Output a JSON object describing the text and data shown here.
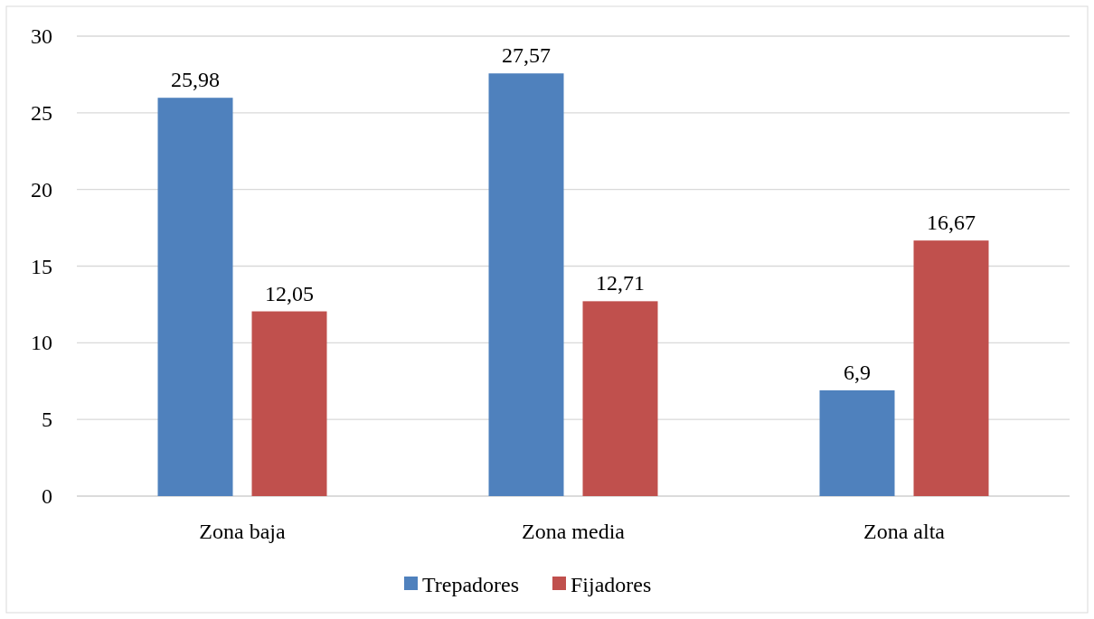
{
  "chart_data": {
    "type": "bar",
    "categories": [
      "Zona baja",
      "Zona media",
      "Zona alta"
    ],
    "series": [
      {
        "name": "Trepadores",
        "color": "#4f81bd",
        "values": [
          25.98,
          27.57,
          6.9
        ],
        "value_labels": [
          "25,98",
          "27,57",
          "6,9"
        ]
      },
      {
        "name": "Fijadores",
        "color": "#c0504d",
        "values": [
          12.05,
          12.71,
          16.67
        ],
        "value_labels": [
          "12,05",
          "12,71",
          "16,67"
        ]
      }
    ],
    "ylim": [
      0,
      30
    ],
    "yticks": [
      0,
      5,
      10,
      15,
      20,
      25,
      30
    ],
    "grid": "y",
    "legend": "bottom"
  }
}
